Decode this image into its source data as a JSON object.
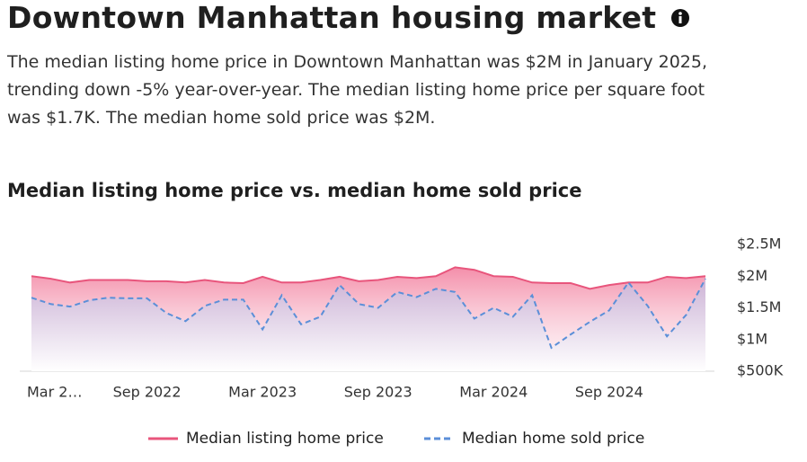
{
  "header": {
    "title": "Downtown Manhattan housing market",
    "description": [
      "The median listing home price in Downtown Manhattan was $2M in January 2025,",
      "trending down -5% year-over-year. The median listing home price per square foot",
      "was $1.7K. The median home sold price was $2M."
    ]
  },
  "chart_data": {
    "type": "line",
    "title": "Median listing home price vs. median home sold price",
    "categories": [
      "Mar 2…",
      null,
      null,
      null,
      null,
      null,
      "Sep 2022",
      null,
      null,
      null,
      null,
      null,
      "Mar 2023",
      null,
      null,
      null,
      null,
      null,
      "Sep 2023",
      null,
      null,
      null,
      null,
      null,
      "Mar 2024",
      null,
      null,
      null,
      null,
      null,
      "Sep 2024",
      null,
      null,
      null,
      null,
      null
    ],
    "series": [
      {
        "name": "Median listing home price",
        "color": "#e8557c",
        "dash": false,
        "values": [
          2000000,
          1960000,
          1900000,
          1940000,
          1940000,
          1940000,
          1920000,
          1920000,
          1900000,
          1940000,
          1900000,
          1890000,
          1990000,
          1900000,
          1900000,
          1940000,
          1990000,
          1920000,
          1940000,
          1990000,
          1970000,
          2000000,
          2140000,
          2100000,
          2000000,
          1990000,
          1900000,
          1890000,
          1890000,
          1800000,
          1860000,
          1900000,
          1900000,
          1990000,
          1970000,
          2000000
        ]
      },
      {
        "name": "Median home sold price",
        "color": "#5b8fd8",
        "dash": true,
        "values": [
          1660000,
          1560000,
          1520000,
          1620000,
          1660000,
          1650000,
          1650000,
          1420000,
          1290000,
          1530000,
          1630000,
          1630000,
          1160000,
          1700000,
          1240000,
          1360000,
          1860000,
          1560000,
          1500000,
          1750000,
          1670000,
          1800000,
          1750000,
          1330000,
          1500000,
          1360000,
          1700000,
          870000,
          1080000,
          1280000,
          1460000,
          1900000,
          1530000,
          1050000,
          1390000,
          1960000
        ]
      }
    ],
    "ylim": [
      500000,
      2500000
    ],
    "yticks": [
      {
        "value": 2500000,
        "label": "$2.5M"
      },
      {
        "value": 2000000,
        "label": "$2M"
      },
      {
        "value": 1500000,
        "label": "$1.5M"
      },
      {
        "value": 1000000,
        "label": "$1M"
      },
      {
        "value": 500000,
        "label": "$500K"
      }
    ],
    "grid": false,
    "legend": "bottom"
  }
}
